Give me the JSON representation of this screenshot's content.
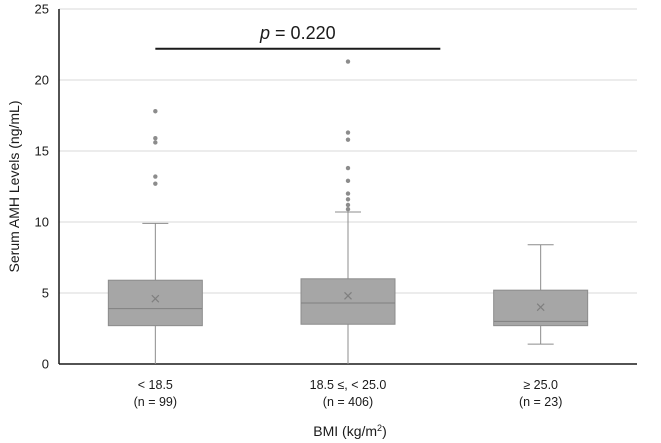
{
  "chart_data": {
    "type": "box",
    "title": "",
    "xlabel": "BMI (kg/m²)",
    "xlabel_main": "BMI (kg/m",
    "xlabel_sup": "2",
    "xlabel_end": ")",
    "ylabel": "Serum AMH Levels (ng/mL)",
    "ylim": [
      0,
      25
    ],
    "yticks": [
      0,
      5,
      10,
      15,
      20,
      25
    ],
    "ytick_labels": [
      "0",
      "5",
      "10",
      "15",
      "20",
      "25"
    ],
    "grid": true,
    "categories": [
      {
        "label": "< 18.5",
        "n_label": "(n = 99)"
      },
      {
        "label": "18.5 ≤, < 25.0",
        "n_label": "(n = 406)"
      },
      {
        "label": "≥ 25.0",
        "n_label": "(n = 23)"
      }
    ],
    "boxes": [
      {
        "whisker_low": 0.0,
        "q1": 2.7,
        "median": 3.9,
        "q3": 5.9,
        "whisker_high": 9.9,
        "mean": 4.6,
        "outliers": [
          12.7,
          13.2,
          15.6,
          15.9,
          17.8
        ]
      },
      {
        "whisker_low": 0.0,
        "q1": 2.8,
        "median": 4.3,
        "q3": 6.0,
        "whisker_high": 10.7,
        "mean": 4.8,
        "outliers": [
          10.9,
          11.2,
          11.6,
          12.0,
          12.9,
          13.8,
          15.8,
          16.3,
          21.3
        ]
      },
      {
        "whisker_low": 1.4,
        "q1": 2.7,
        "median": 3.0,
        "q3": 5.2,
        "whisker_high": 8.4,
        "mean": 4.0,
        "outliers": []
      }
    ],
    "annotation": {
      "p_symbol": "p",
      "p_rest": " = 0.220",
      "bracket_y": 22.2,
      "bracket_from_category": 0,
      "bracket_to_category": 1.5
    },
    "colors": {
      "box_fill": "#a6a6a6",
      "box_stroke": "#8c8c8c",
      "whisker": "#8c8c8c",
      "median": "#808080",
      "mean_marker": "#7f7f7f",
      "outlier": "#8c8c8c",
      "grid": "#d9d9d9",
      "axis": "#1a1a1a",
      "bracket": "#1a1a1a"
    }
  }
}
